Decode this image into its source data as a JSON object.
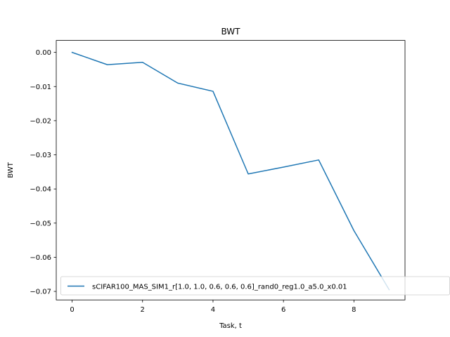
{
  "chart_data": {
    "type": "line",
    "title": "BWT",
    "xlabel": "Task, t",
    "ylabel": "BWT",
    "xlim": [
      -0.45,
      9.45
    ],
    "ylim": [
      -0.0725,
      0.0035
    ],
    "xticks": [
      0,
      2,
      4,
      6,
      8
    ],
    "xtick_labels": [
      "0",
      "2",
      "4",
      "6",
      "8"
    ],
    "yticks": [
      0.0,
      -0.01,
      -0.02,
      -0.03,
      -0.04,
      -0.05,
      -0.06,
      -0.07
    ],
    "ytick_labels": [
      "0.00",
      "−0.01",
      "−0.02",
      "−0.03",
      "−0.04",
      "−0.05",
      "−0.06",
      "−0.07"
    ],
    "grid": false,
    "legend_position": "lower-right",
    "series": [
      {
        "name": "sCIFAR100_MAS_SIM1_r[1.0, 1.0, 0.6, 0.6, 0.6]_rand0_reg1.0_a5.0_x0.01",
        "color": "#1f77b4",
        "x": [
          0,
          1,
          2,
          3,
          4,
          5,
          6,
          7,
          8,
          9
        ],
        "y": [
          0.0,
          -0.0036,
          -0.0029,
          -0.009,
          -0.0114,
          -0.0356,
          -0.0336,
          -0.0315,
          -0.0522,
          -0.0695
        ]
      }
    ]
  }
}
